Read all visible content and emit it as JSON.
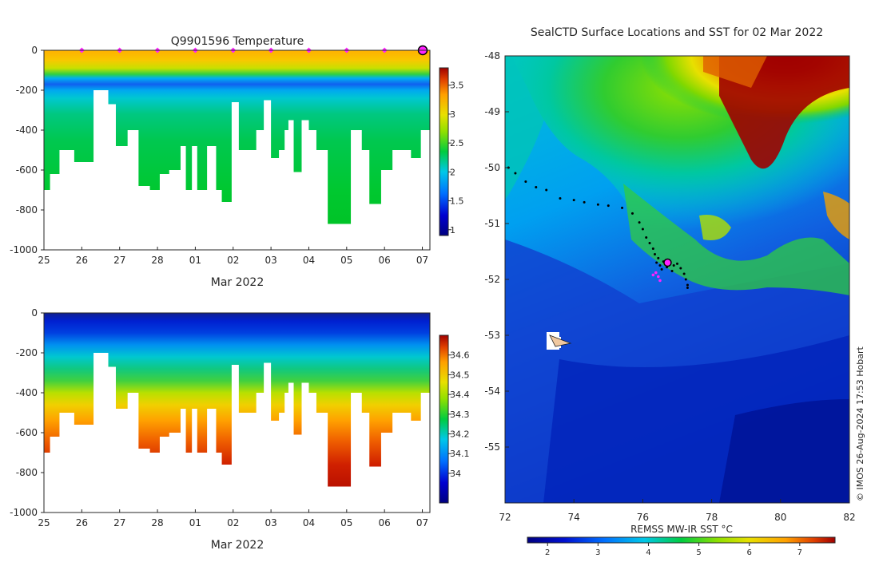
{
  "chart_data": [
    {
      "id": "temperature_section",
      "type": "heatmap",
      "title": "Q9901596  Temperature",
      "xlabel": "Mar 2022",
      "ylabel": "",
      "x_ticks": [
        "25",
        "26",
        "27",
        "28",
        "01",
        "02",
        "03",
        "04",
        "05",
        "06",
        "07"
      ],
      "x_range_days": [
        0,
        10.2
      ],
      "y_ticks": [
        0,
        -200,
        -400,
        -600,
        -800,
        -1000
      ],
      "ylim": [
        -1000,
        0
      ],
      "colorbar": {
        "ticks": [
          3.5,
          3,
          2.5,
          2,
          1.5,
          1
        ],
        "range": [
          0.9,
          3.8
        ]
      },
      "surface_marker_days": [
        1,
        2,
        3,
        4,
        5,
        6,
        7,
        8,
        9,
        10
      ],
      "profiles_max_depth_m": [
        {
          "start": 0.0,
          "end": 0.15,
          "depth": -700
        },
        {
          "start": 0.15,
          "end": 0.4,
          "depth": -620
        },
        {
          "start": 0.4,
          "end": 0.8,
          "depth": -500
        },
        {
          "start": 0.8,
          "end": 1.3,
          "depth": -560
        },
        {
          "start": 1.3,
          "end": 1.7,
          "depth": -200
        },
        {
          "start": 1.7,
          "end": 1.9,
          "depth": -270
        },
        {
          "start": 1.9,
          "end": 2.2,
          "depth": -480
        },
        {
          "start": 2.2,
          "end": 2.5,
          "depth": -400
        },
        {
          "start": 2.5,
          "end": 2.8,
          "depth": -680
        },
        {
          "start": 2.8,
          "end": 3.05,
          "depth": -700
        },
        {
          "start": 3.05,
          "end": 3.3,
          "depth": -620
        },
        {
          "start": 3.3,
          "end": 3.6,
          "depth": -600
        },
        {
          "start": 3.6,
          "end": 3.75,
          "depth": -480
        },
        {
          "start": 3.75,
          "end": 3.9,
          "depth": -700
        },
        {
          "start": 3.9,
          "end": 4.05,
          "depth": -480
        },
        {
          "start": 4.05,
          "end": 4.3,
          "depth": -700
        },
        {
          "start": 4.3,
          "end": 4.55,
          "depth": -480
        },
        {
          "start": 4.55,
          "end": 4.7,
          "depth": -700
        },
        {
          "start": 4.7,
          "end": 4.95,
          "depth": -760
        },
        {
          "start": 4.95,
          "end": 5.15,
          "depth": -260
        },
        {
          "start": 5.15,
          "end": 5.6,
          "depth": -500
        },
        {
          "start": 5.6,
          "end": 5.8,
          "depth": -400
        },
        {
          "start": 5.8,
          "end": 6.0,
          "depth": -250
        },
        {
          "start": 6.0,
          "end": 6.2,
          "depth": -540
        },
        {
          "start": 6.2,
          "end": 6.35,
          "depth": -500
        },
        {
          "start": 6.35,
          "end": 6.45,
          "depth": -400
        },
        {
          "start": 6.45,
          "end": 6.6,
          "depth": -350
        },
        {
          "start": 6.6,
          "end": 6.8,
          "depth": -610
        },
        {
          "start": 6.8,
          "end": 7.0,
          "depth": -350
        },
        {
          "start": 7.0,
          "end": 7.2,
          "depth": -400
        },
        {
          "start": 7.2,
          "end": 7.5,
          "depth": -500
        },
        {
          "start": 7.5,
          "end": 8.1,
          "depth": -870
        },
        {
          "start": 8.1,
          "end": 8.4,
          "depth": -400
        },
        {
          "start": 8.4,
          "end": 8.6,
          "depth": -500
        },
        {
          "start": 8.6,
          "end": 8.9,
          "depth": -770
        },
        {
          "start": 8.9,
          "end": 9.2,
          "depth": -600
        },
        {
          "start": 9.2,
          "end": 9.7,
          "depth": -500
        },
        {
          "start": 9.7,
          "end": 9.95,
          "depth": -540
        },
        {
          "start": 9.95,
          "end": 10.2,
          "depth": -400
        }
      ]
    },
    {
      "id": "salinity_section",
      "type": "heatmap",
      "title": "",
      "xlabel": "Mar 2022",
      "x_ticks": [
        "25",
        "26",
        "27",
        "28",
        "01",
        "02",
        "03",
        "04",
        "05",
        "06",
        "07"
      ],
      "y_ticks": [
        0,
        -200,
        -400,
        -600,
        -800,
        -1000
      ],
      "ylim": [
        -1000,
        0
      ],
      "colorbar": {
        "ticks": [
          34.6,
          34.5,
          34.4,
          34.3,
          34.2,
          34.1,
          34
        ],
        "range": [
          33.85,
          34.7
        ]
      }
    },
    {
      "id": "sst_map",
      "type": "heatmap",
      "title": "SealCTD Surface Locations and SST for 02 Mar 2022",
      "x_ticks": [
        "72",
        "74",
        "76",
        "78",
        "80",
        "82"
      ],
      "xlim": [
        72,
        82
      ],
      "y_ticks": [
        "-48",
        "-49",
        "-50",
        "-51",
        "-52",
        "-53",
        "-54",
        "-55"
      ],
      "ylim": [
        -56,
        -48
      ],
      "colorbar": {
        "label": "REMSS MW-IR SST °C",
        "ticks": [
          "2",
          "3",
          "4",
          "5",
          "6",
          "7"
        ],
        "range": [
          1.6,
          7.7
        ]
      },
      "track_points": [
        [
          72.1,
          -50.0
        ],
        [
          72.3,
          -50.1
        ],
        [
          72.6,
          -50.25
        ],
        [
          72.9,
          -50.35
        ],
        [
          73.2,
          -50.4
        ],
        [
          73.6,
          -50.55
        ],
        [
          74.0,
          -50.58
        ],
        [
          74.3,
          -50.62
        ],
        [
          74.7,
          -50.66
        ],
        [
          75.0,
          -50.68
        ],
        [
          75.4,
          -50.72
        ],
        [
          75.7,
          -50.82
        ],
        [
          75.9,
          -50.98
        ],
        [
          76.0,
          -51.1
        ],
        [
          76.1,
          -51.25
        ],
        [
          76.2,
          -51.35
        ],
        [
          76.3,
          -51.45
        ],
        [
          76.35,
          -51.55
        ],
        [
          76.4,
          -51.7
        ],
        [
          76.5,
          -51.75
        ],
        [
          76.6,
          -51.68
        ],
        [
          76.7,
          -51.78
        ],
        [
          76.8,
          -51.7
        ],
        [
          76.9,
          -51.75
        ],
        [
          77.0,
          -51.72
        ],
        [
          77.1,
          -51.8
        ],
        [
          77.2,
          -51.9
        ],
        [
          77.25,
          -52.0
        ],
        [
          77.3,
          -52.1
        ],
        [
          77.3,
          -52.15
        ],
        [
          76.45,
          -51.62
        ],
        [
          76.55,
          -51.82
        ],
        [
          76.85,
          -51.85
        ]
      ],
      "magenta_points": [
        [
          76.3,
          -51.92
        ],
        [
          76.45,
          -51.95
        ],
        [
          76.5,
          -52.02
        ],
        [
          76.38,
          -51.88
        ]
      ],
      "current_position": [
        76.72,
        -51.7
      ],
      "island_label": "",
      "copyright": "© IMOS 26-Aug-2024 17:53 Hobart"
    }
  ],
  "colors": {
    "magenta": "#ff22ff",
    "track": "#000000"
  }
}
